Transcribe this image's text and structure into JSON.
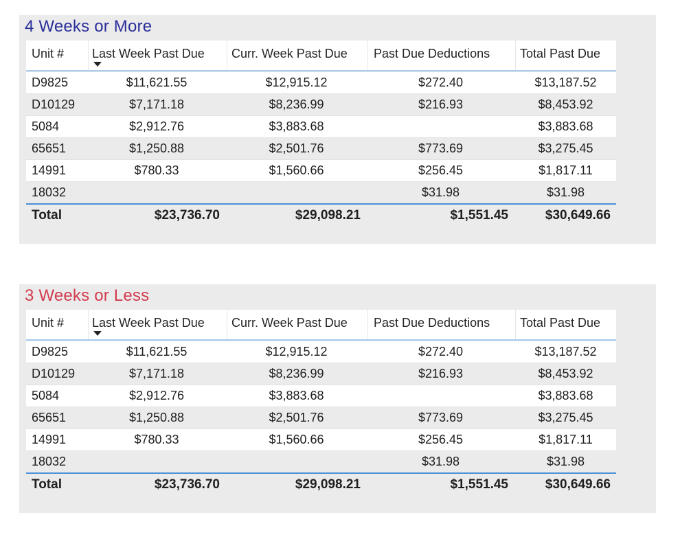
{
  "tables": [
    {
      "title": "4 Weeks or More",
      "title_color": "#2a2f9a",
      "columns": [
        "Unit #",
        "Last Week Past Due",
        "Curr. Week Past Due",
        "Past Due Deductions",
        "Total Past Due"
      ],
      "sort_icon": "sort-descending-icon",
      "rows": [
        [
          "D9825",
          "$11,621.55",
          "$12,915.12",
          "$272.40",
          "$13,187.52"
        ],
        [
          "D10129",
          "$7,171.18",
          "$8,236.99",
          "$216.93",
          "$8,453.92"
        ],
        [
          "5084",
          "$2,912.76",
          "$3,883.68",
          "",
          "$3,883.68"
        ],
        [
          "65651",
          "$1,250.88",
          "$2,501.76",
          "$773.69",
          "$3,275.45"
        ],
        [
          "14991",
          "$780.33",
          "$1,560.66",
          "$256.45",
          "$1,817.11"
        ],
        [
          "18032",
          "",
          "",
          "$31.98",
          "$31.98"
        ]
      ],
      "total": [
        "Total",
        "$23,736.70",
        "$29,098.21",
        "$1,551.45",
        "$30,649.66"
      ]
    },
    {
      "title": "3 Weeks or Less",
      "title_color": "#d23c4f",
      "columns": [
        "Unit #",
        "Last Week Past Due",
        "Curr. Week Past Due",
        "Past Due Deductions",
        "Total Past Due"
      ],
      "sort_icon": "sort-descending-icon",
      "rows": [
        [
          "D9825",
          "$11,621.55",
          "$12,915.12",
          "$272.40",
          "$13,187.52"
        ],
        [
          "D10129",
          "$7,171.18",
          "$8,236.99",
          "$216.93",
          "$8,453.92"
        ],
        [
          "5084",
          "$2,912.76",
          "$3,883.68",
          "",
          "$3,883.68"
        ],
        [
          "65651",
          "$1,250.88",
          "$2,501.76",
          "$773.69",
          "$3,275.45"
        ],
        [
          "14991",
          "$780.33",
          "$1,560.66",
          "$256.45",
          "$1,817.11"
        ],
        [
          "18032",
          "",
          "",
          "$31.98",
          "$31.98"
        ]
      ],
      "total": [
        "Total",
        "$23,736.70",
        "$29,098.21",
        "$1,551.45",
        "$30,649.66"
      ]
    }
  ]
}
